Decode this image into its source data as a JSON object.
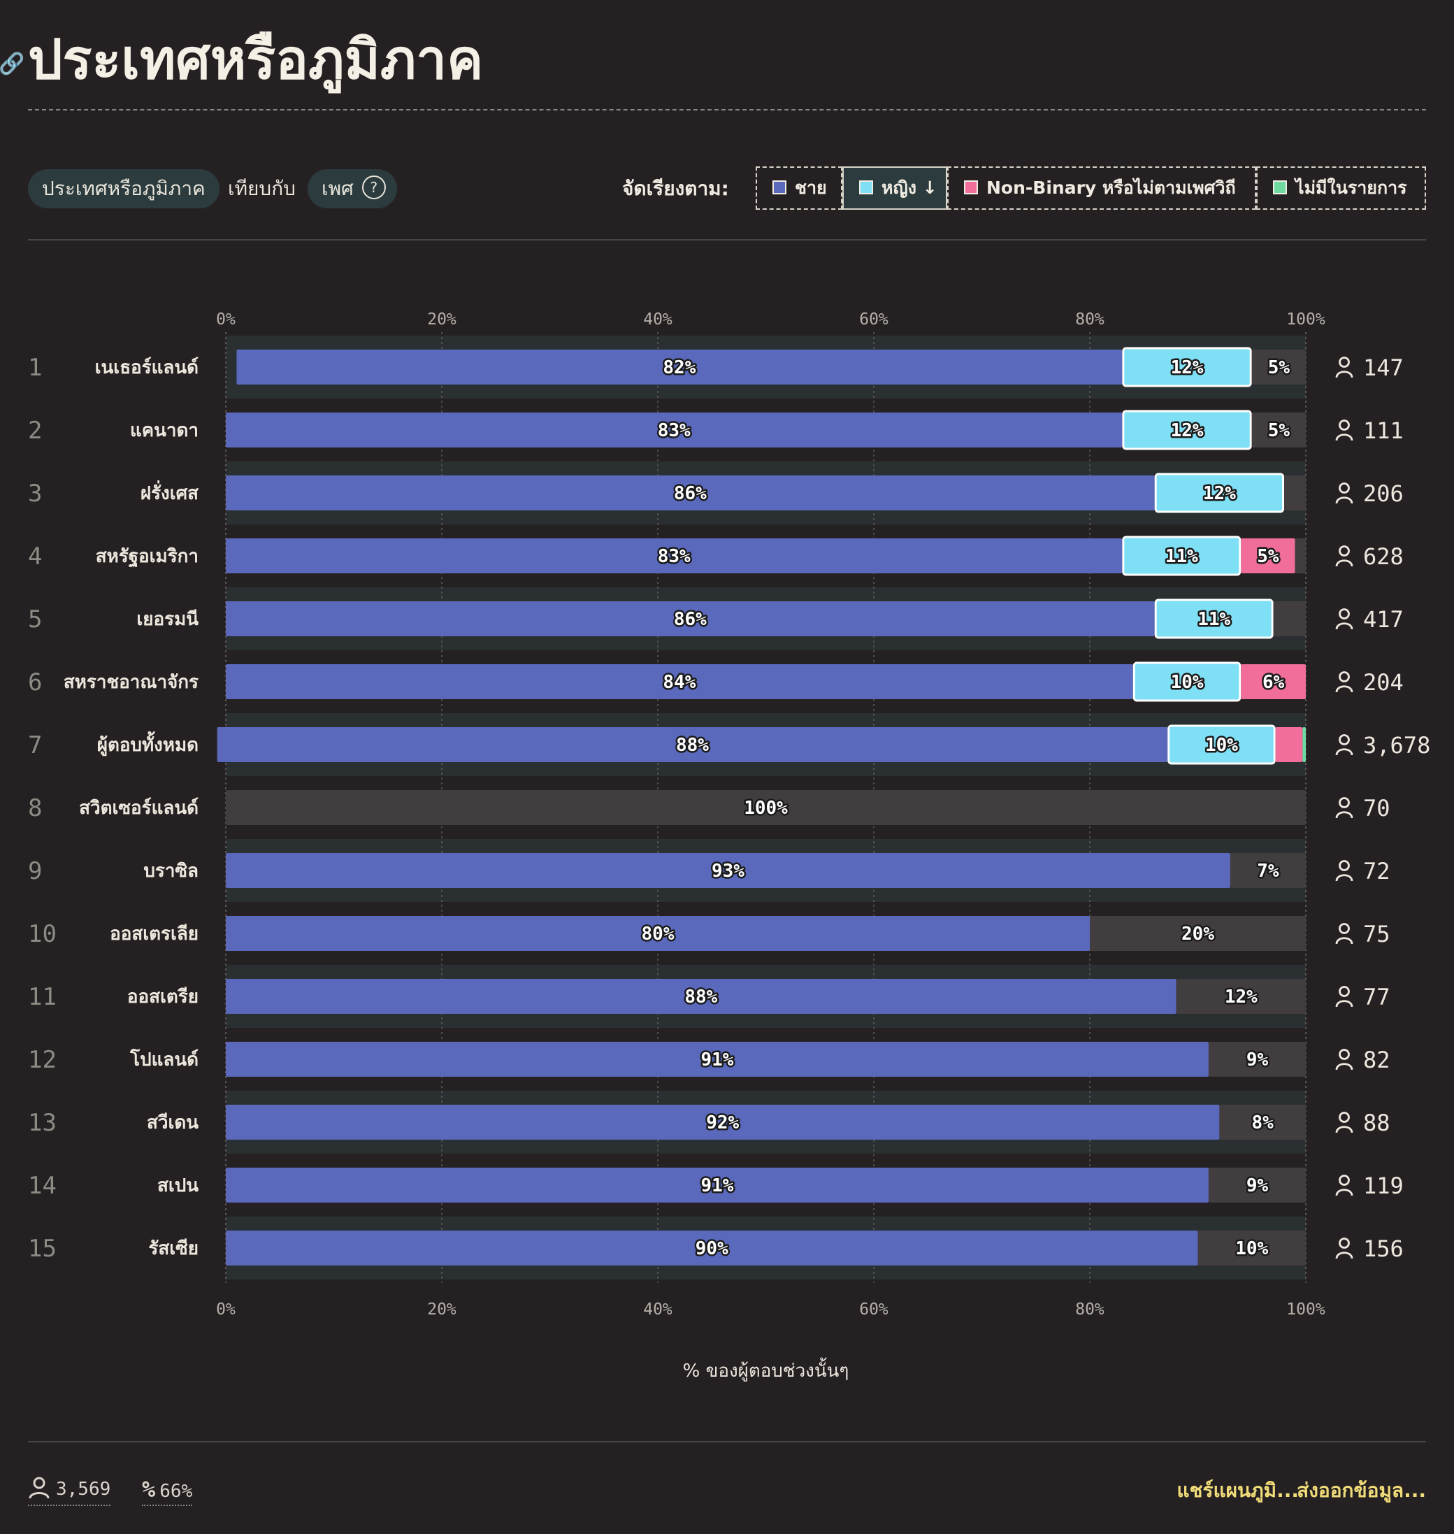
{
  "page": {
    "title": "ประเทศหรือภูมิภาค",
    "link_icon": "link-icon"
  },
  "controls": {
    "primary_pill": "ประเทศหรือภูมิภาค",
    "versus": "เทียบกับ",
    "secondary_pill": "เพศ",
    "help_icon": "?",
    "sort_label": "จัดเรียงตาม:",
    "legend": [
      {
        "label": "ชาย",
        "color": "#5b69bc",
        "active": false
      },
      {
        "label": "หญิง ↓",
        "color": "#7fe0f5",
        "active": true
      },
      {
        "label": "Non-Binary หรือไม่ตามเพศวิถี",
        "color": "#f06e99",
        "active": false
      },
      {
        "label": "ไม่มีในรายการ",
        "color": "#6ed9a0",
        "active": false
      }
    ]
  },
  "chart_data": {
    "type": "bar",
    "orientation": "horizontal-stacked",
    "xlabel": "% ของผู้ตอบช่วงนั้นๆ",
    "xlim": [
      0,
      100
    ],
    "x_ticks": [
      "0%",
      "20%",
      "40%",
      "60%",
      "80%",
      "100%"
    ],
    "colors": {
      "male": "#5b69bc",
      "female": "#7fe0f5",
      "nonbinary": "#f06e99",
      "unlisted": "#6ed9a0",
      "other": "#423e40"
    },
    "rows": [
      {
        "rank": "1",
        "name": "เนเธอร์แลนด์",
        "count": "147",
        "male": 82,
        "female": 12,
        "nonbinary": 0,
        "unlisted": 0,
        "other": 5,
        "labels": {
          "male": "82%",
          "female": "12%",
          "other": "5%"
        }
      },
      {
        "rank": "2",
        "name": "แคนาดา",
        "count": "111",
        "male": 83,
        "female": 12,
        "nonbinary": 0,
        "unlisted": 0,
        "other": 5,
        "labels": {
          "male": "83%",
          "female": "12%",
          "other": "5%"
        }
      },
      {
        "rank": "3",
        "name": "ฝรั่งเศส",
        "count": "206",
        "male": 86,
        "female": 12,
        "nonbinary": 0,
        "unlisted": 0,
        "other": 2,
        "labels": {
          "male": "86%",
          "female": "12%"
        }
      },
      {
        "rank": "4",
        "name": "สหรัฐอเมริกา",
        "count": "628",
        "male": 83,
        "female": 11,
        "nonbinary": 5,
        "unlisted": 0,
        "other": 1,
        "labels": {
          "male": "83%",
          "female": "11%",
          "nonbinary": "5%"
        }
      },
      {
        "rank": "5",
        "name": "เยอรมนี",
        "count": "417",
        "male": 86,
        "female": 11,
        "nonbinary": 0,
        "unlisted": 0,
        "other": 3,
        "labels": {
          "male": "86%",
          "female": "11%"
        }
      },
      {
        "rank": "6",
        "name": "สหราชอาณาจักร",
        "count": "204",
        "male": 84,
        "female": 10,
        "nonbinary": 6,
        "unlisted": 0,
        "other": 0,
        "labels": {
          "male": "84%",
          "female": "10%",
          "nonbinary": "6%"
        }
      },
      {
        "rank": "7",
        "name": "ผู้ตอบทั้งหมด",
        "count": "3,678",
        "male": 88,
        "female": 10,
        "nonbinary": 2.5,
        "unlisted": 0.3,
        "other": 0,
        "labels": {
          "male": "88%",
          "female": "10%"
        }
      },
      {
        "rank": "8",
        "name": "สวิตเซอร์แลนด์",
        "count": "70",
        "male": 0,
        "female": 0,
        "nonbinary": 0,
        "unlisted": 0,
        "other": 100,
        "labels": {
          "other": "100%"
        }
      },
      {
        "rank": "9",
        "name": "บราซิล",
        "count": "72",
        "male": 93,
        "female": 0,
        "nonbinary": 0,
        "unlisted": 0,
        "other": 7,
        "labels": {
          "male": "93%",
          "other": "7%"
        }
      },
      {
        "rank": "10",
        "name": "ออสเตรเลีย",
        "count": "75",
        "male": 80,
        "female": 0,
        "nonbinary": 0,
        "unlisted": 0,
        "other": 20,
        "labels": {
          "male": "80%",
          "other": "20%"
        }
      },
      {
        "rank": "11",
        "name": "ออสเตรีย",
        "count": "77",
        "male": 88,
        "female": 0,
        "nonbinary": 0,
        "unlisted": 0,
        "other": 12,
        "labels": {
          "male": "88%",
          "other": "12%"
        }
      },
      {
        "rank": "12",
        "name": "โปแลนด์",
        "count": "82",
        "male": 91,
        "female": 0,
        "nonbinary": 0,
        "unlisted": 0,
        "other": 9,
        "labels": {
          "male": "91%",
          "other": "9%"
        }
      },
      {
        "rank": "13",
        "name": "สวีเดน",
        "count": "88",
        "male": 92,
        "female": 0,
        "nonbinary": 0,
        "unlisted": 0,
        "other": 8,
        "labels": {
          "male": "92%",
          "other": "8%"
        }
      },
      {
        "rank": "14",
        "name": "สเปน",
        "count": "119",
        "male": 91,
        "female": 0,
        "nonbinary": 0,
        "unlisted": 0,
        "other": 9,
        "labels": {
          "male": "91%",
          "other": "9%"
        }
      },
      {
        "rank": "15",
        "name": "รัสเซีย",
        "count": "156",
        "male": 90,
        "female": 0,
        "nonbinary": 0,
        "unlisted": 0,
        "other": 10,
        "labels": {
          "male": "90%",
          "other": "10%"
        }
      }
    ]
  },
  "footer": {
    "respondents": "3,569",
    "percent": "66%",
    "share_link": "แชร์แผนภูมิ...",
    "export_link": "ส่งออกข้อมูล..."
  }
}
